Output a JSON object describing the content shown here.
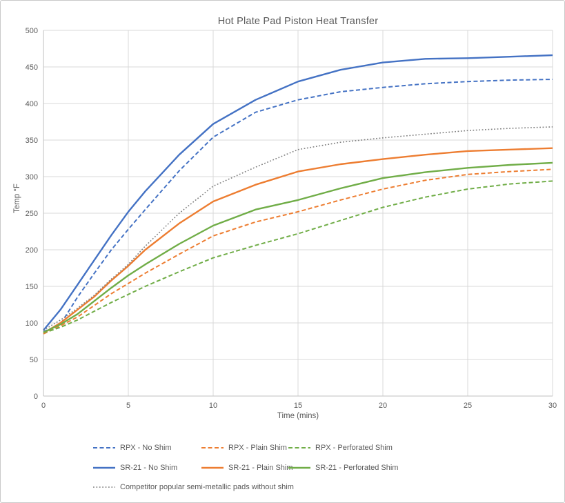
{
  "chart_data": {
    "type": "line",
    "title": "Hot Plate Pad Piston Heat Transfer",
    "xlabel": "Time (mins)",
    "ylabel": "Temp °F",
    "xlim": [
      0,
      30
    ],
    "ylim": [
      0,
      500
    ],
    "x_ticks": [
      0,
      5,
      10,
      15,
      20,
      25,
      30
    ],
    "y_ticks": [
      0,
      50,
      100,
      150,
      200,
      250,
      300,
      350,
      400,
      450,
      500
    ],
    "grid": true,
    "legend_position": "bottom",
    "axis_color": "#bfbfbf",
    "grid_color": "#d9d9d9",
    "text_color": "#595959",
    "x": [
      0,
      1,
      2,
      3,
      4,
      5,
      6,
      8,
      10,
      12.5,
      15,
      17.5,
      20,
      22.5,
      25,
      27.5,
      30
    ],
    "series": [
      {
        "name": "RPX - No Shim",
        "color": "#4472c4",
        "style": "dashed",
        "values": [
          88,
          98,
          135,
          168,
          200,
          228,
          255,
          308,
          354,
          388,
          405,
          416,
          422,
          427,
          430,
          432,
          433
        ]
      },
      {
        "name": "RPX - Plain Shim",
        "color": "#ed7d31",
        "style": "dashed",
        "values": [
          85,
          96,
          108,
          124,
          140,
          154,
          168,
          194,
          219,
          238,
          252,
          268,
          283,
          295,
          303,
          307,
          310
        ]
      },
      {
        "name": "RPX - Perforated Shim",
        "color": "#70ad47",
        "style": "dashed",
        "values": [
          86,
          94,
          104,
          116,
          128,
          139,
          150,
          170,
          189,
          206,
          222,
          240,
          258,
          272,
          283,
          290,
          294
        ]
      },
      {
        "name": "SR-21 - No Shim",
        "color": "#4472c4",
        "style": "solid",
        "values": [
          90,
          118,
          152,
          186,
          220,
          252,
          280,
          330,
          372,
          405,
          430,
          446,
          456,
          461,
          462,
          464,
          466
        ]
      },
      {
        "name": "SR-21 - Plain Shim",
        "color": "#ed7d31",
        "style": "solid",
        "values": [
          86,
          100,
          118,
          136,
          158,
          178,
          200,
          236,
          266,
          289,
          307,
          317,
          324,
          330,
          335,
          337,
          339
        ]
      },
      {
        "name": "SR-21 - Perforated Shim",
        "color": "#70ad47",
        "style": "solid",
        "values": [
          87,
          98,
          112,
          130,
          148,
          165,
          180,
          208,
          233,
          255,
          268,
          284,
          298,
          306,
          312,
          316,
          319
        ]
      },
      {
        "name": "Competitor popular semi-metallic pads without shim",
        "color": "#7f7f7f",
        "style": "dotted",
        "values": [
          90,
          104,
          120,
          138,
          160,
          180,
          205,
          250,
          287,
          313,
          337,
          347,
          353,
          358,
          363,
          366,
          368
        ]
      }
    ]
  }
}
